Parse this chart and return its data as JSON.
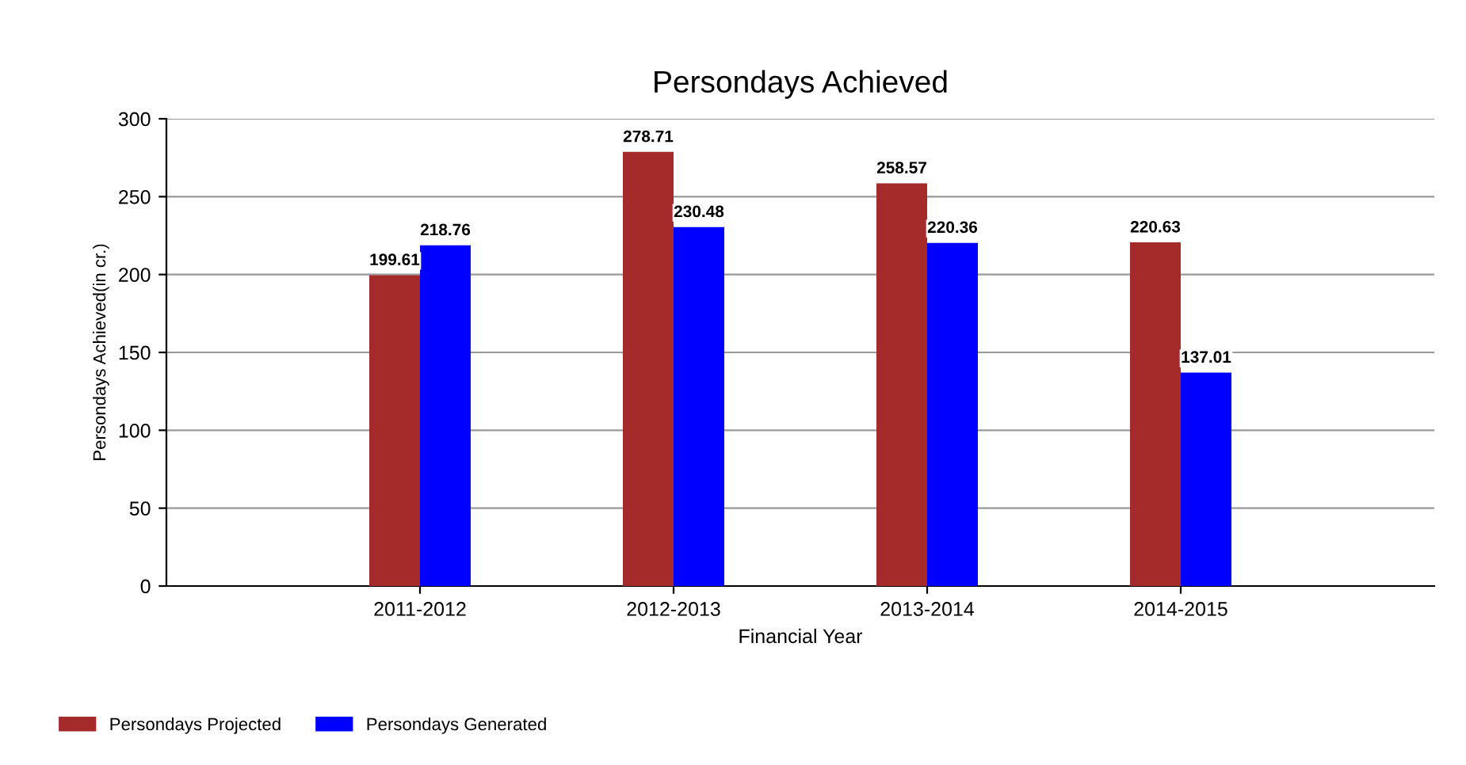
{
  "chart_data": {
    "type": "bar",
    "title": "Persondays Achieved",
    "xlabel": "Financial Year",
    "ylabel": "Persondays Achieved(in cr.)",
    "categories": [
      "2011-2012",
      "2012-2013",
      "2013-2014",
      "2014-2015"
    ],
    "series": [
      {
        "name": "Persondays Projected",
        "color": "#a52a2a",
        "values": [
          199.61,
          278.71,
          258.57,
          220.63
        ]
      },
      {
        "name": "Persondays Generated",
        "color": "#0000ff",
        "values": [
          218.76,
          230.48,
          220.36,
          137.01
        ]
      }
    ],
    "ylim": [
      0,
      300
    ],
    "yticks": [
      0,
      50,
      100,
      150,
      200,
      250,
      300
    ],
    "grid": "y",
    "legend": "bottom left",
    "data_labels": true
  }
}
